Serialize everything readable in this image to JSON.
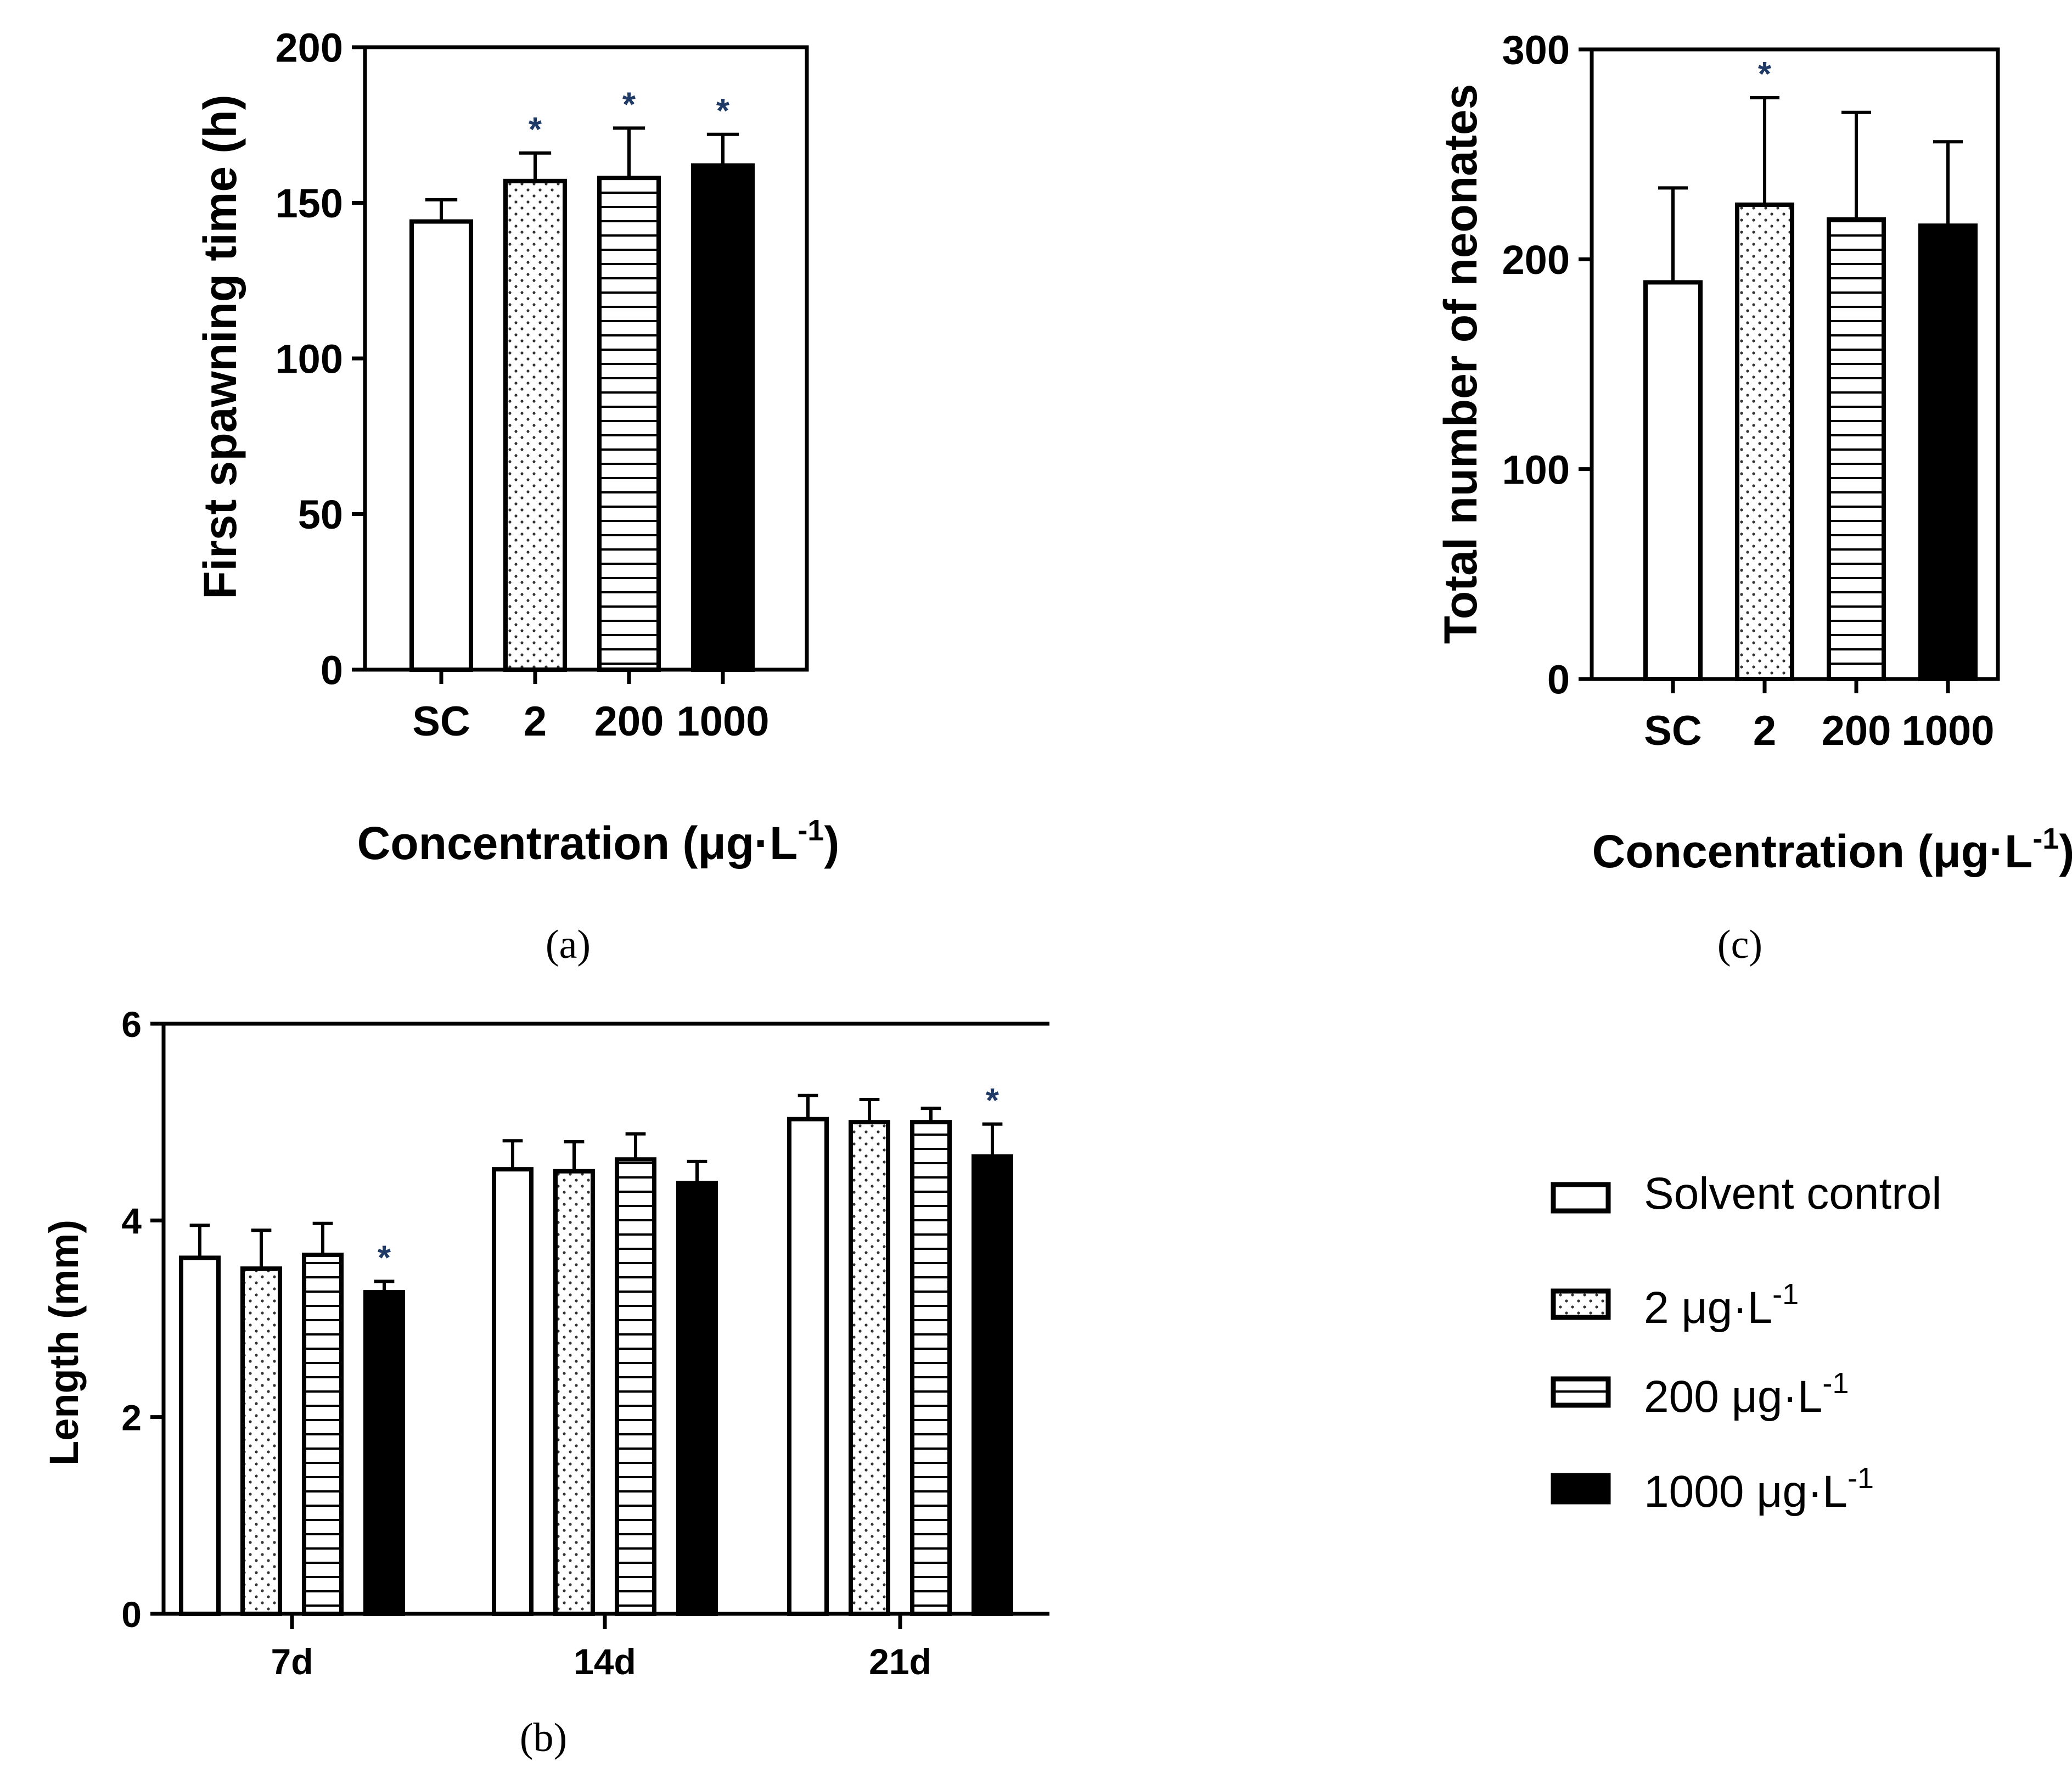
{
  "colors": {
    "ink": "#000000",
    "star": "#1f3a66",
    "background": "#ffffff"
  },
  "legend": {
    "items": [
      {
        "key": "sc",
        "pattern": "open",
        "label": "Solvent control"
      },
      {
        "key": "c2",
        "pattern": "dots",
        "label": "2 μg·L",
        "sup": "-1"
      },
      {
        "key": "c200",
        "pattern": "hlines",
        "label": "200 μg·L",
        "sup": "-1"
      },
      {
        "key": "c1000",
        "pattern": "solid",
        "label": "1000 μg·L",
        "sup": "-1"
      }
    ]
  },
  "chart_data": [
    {
      "id": "a",
      "panel_label": "(a)",
      "type": "bar",
      "categories": [
        "SC",
        "2",
        "200",
        "1000"
      ],
      "patterns": [
        "open",
        "dots",
        "hlines",
        "solid"
      ],
      "values": [
        144,
        157,
        158,
        162
      ],
      "errors": [
        7,
        9,
        16,
        10
      ],
      "significant": [
        false,
        true,
        true,
        true
      ],
      "sig_marker": "*",
      "ylabel": "First spawning time (h)",
      "xlabel": "Concentration (μg·L",
      "xlabel_sup": "-1",
      "xlabel_end": ")",
      "ylim": [
        0,
        200
      ],
      "yticks": [
        0,
        50,
        100,
        150,
        200
      ],
      "grid": false
    },
    {
      "id": "c",
      "panel_label": "(c)",
      "type": "bar",
      "categories": [
        "SC",
        "2",
        "200",
        "1000"
      ],
      "patterns": [
        "open",
        "dots",
        "hlines",
        "solid"
      ],
      "values": [
        189,
        226,
        219,
        216
      ],
      "errors": [
        45,
        51,
        51,
        40
      ],
      "significant": [
        false,
        true,
        false,
        false
      ],
      "sig_marker": "*",
      "ylabel": "Total number of neonates",
      "xlabel": "Concentration (μg·L",
      "xlabel_sup": "-1",
      "xlabel_end": ")",
      "ylim": [
        0,
        300
      ],
      "yticks": [
        0,
        100,
        200,
        300
      ],
      "grid": false
    },
    {
      "id": "b",
      "panel_label": "(b)",
      "type": "bar",
      "categories": [
        "7d",
        "14d",
        "21d"
      ],
      "series": [
        {
          "name": "Solvent control",
          "pattern": "open",
          "values": [
            3.62,
            4.52,
            5.03
          ],
          "errors": [
            0.33,
            0.29,
            0.24
          ],
          "significant": [
            false,
            false,
            false
          ]
        },
        {
          "name": "2 μg·L-1",
          "pattern": "dots",
          "values": [
            3.51,
            4.5,
            5.0
          ],
          "errors": [
            0.39,
            0.3,
            0.23
          ],
          "significant": [
            false,
            false,
            false
          ]
        },
        {
          "name": "200 μg·L-1",
          "pattern": "hlines",
          "values": [
            3.65,
            4.62,
            5.0
          ],
          "errors": [
            0.32,
            0.26,
            0.14
          ],
          "significant": [
            false,
            false,
            false
          ]
        },
        {
          "name": "1000 μg·L-1",
          "pattern": "solid",
          "values": [
            3.27,
            4.38,
            4.65
          ],
          "errors": [
            0.11,
            0.22,
            0.33
          ],
          "significant": [
            true,
            false,
            true
          ]
        }
      ],
      "sig_marker": "*",
      "ylabel": "Length (mm)",
      "xlabel": "",
      "ylim": [
        0,
        6
      ],
      "yticks": [
        0,
        2,
        4,
        6
      ],
      "grid": false
    }
  ]
}
